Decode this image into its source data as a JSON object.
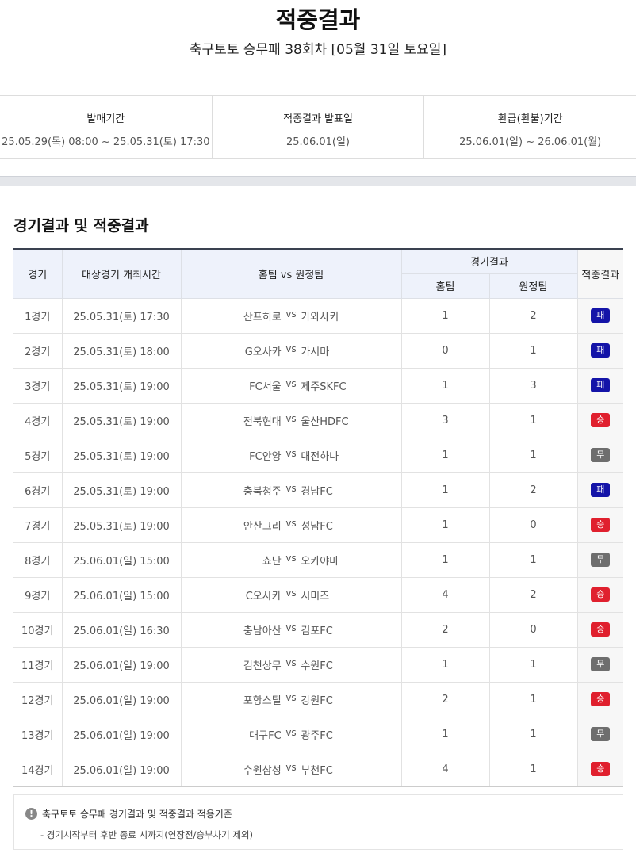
{
  "header": {
    "title": "적중결과",
    "subtitle": "축구토토 승무패 38회차 [05월 31일 토요일]"
  },
  "info": [
    {
      "label": "발매기간",
      "value": "25.05.29(목) 08:00 ~ 25.05.31(토) 17:30"
    },
    {
      "label": "적중결과 발표일",
      "value": "25.06.01(일)"
    },
    {
      "label": "환급(환불)기간",
      "value": "25.06.01(일) ~ 26.06.01(월)"
    }
  ],
  "section_title": "경기결과 및 적중결과",
  "table": {
    "headers": {
      "game": "경기",
      "time": "대상경기 개최시간",
      "teams": "홈팀 vs 원정팀",
      "result": "경기결과",
      "home": "홈팀",
      "away": "원정팀",
      "outcome": "적중결과"
    },
    "vs": "vs",
    "rows": [
      {
        "game": "1경기",
        "time": "25.05.31(토) 17:30",
        "home": "산프히로",
        "away": "가와사키",
        "hs": "1",
        "as": "2",
        "outcome": "패"
      },
      {
        "game": "2경기",
        "time": "25.05.31(토) 18:00",
        "home": "G오사카",
        "away": "가시마",
        "hs": "0",
        "as": "1",
        "outcome": "패"
      },
      {
        "game": "3경기",
        "time": "25.05.31(토) 19:00",
        "home": "FC서울",
        "away": "제주SKFC",
        "hs": "1",
        "as": "3",
        "outcome": "패"
      },
      {
        "game": "4경기",
        "time": "25.05.31(토) 19:00",
        "home": "전북현대",
        "away": "울산HDFC",
        "hs": "3",
        "as": "1",
        "outcome": "승"
      },
      {
        "game": "5경기",
        "time": "25.05.31(토) 19:00",
        "home": "FC안양",
        "away": "대전하나",
        "hs": "1",
        "as": "1",
        "outcome": "무"
      },
      {
        "game": "6경기",
        "time": "25.05.31(토) 19:00",
        "home": "충북청주",
        "away": "경남FC",
        "hs": "1",
        "as": "2",
        "outcome": "패"
      },
      {
        "game": "7경기",
        "time": "25.05.31(토) 19:00",
        "home": "안산그리",
        "away": "성남FC",
        "hs": "1",
        "as": "0",
        "outcome": "승"
      },
      {
        "game": "8경기",
        "time": "25.06.01(일) 15:00",
        "home": "쇼난",
        "away": "오카야마",
        "hs": "1",
        "as": "1",
        "outcome": "무"
      },
      {
        "game": "9경기",
        "time": "25.06.01(일) 15:00",
        "home": "C오사카",
        "away": "시미즈",
        "hs": "4",
        "as": "2",
        "outcome": "승"
      },
      {
        "game": "10경기",
        "time": "25.06.01(일) 16:30",
        "home": "충남아산",
        "away": "김포FC",
        "hs": "2",
        "as": "0",
        "outcome": "승"
      },
      {
        "game": "11경기",
        "time": "25.06.01(일) 19:00",
        "home": "김천상무",
        "away": "수원FC",
        "hs": "1",
        "as": "1",
        "outcome": "무"
      },
      {
        "game": "12경기",
        "time": "25.06.01(일) 19:00",
        "home": "포항스틸",
        "away": "강원FC",
        "hs": "2",
        "as": "1",
        "outcome": "승"
      },
      {
        "game": "13경기",
        "time": "25.06.01(일) 19:00",
        "home": "대구FC",
        "away": "광주FC",
        "hs": "1",
        "as": "1",
        "outcome": "무"
      },
      {
        "game": "14경기",
        "time": "25.06.01(일) 19:00",
        "home": "수원삼성",
        "away": "부천FC",
        "hs": "4",
        "as": "1",
        "outcome": "승"
      }
    ]
  },
  "badge_colors": {
    "승": "#e0202e",
    "무": "#6e6e6e",
    "패": "#1414a8"
  },
  "note": {
    "icon": "exclamation-circle-icon",
    "title": "축구토토 승무패 경기결과 및 적중결과 적용기준",
    "desc": "- 경기시작부터 후반 종료 시까지(연장전/승부차기 제외)"
  }
}
